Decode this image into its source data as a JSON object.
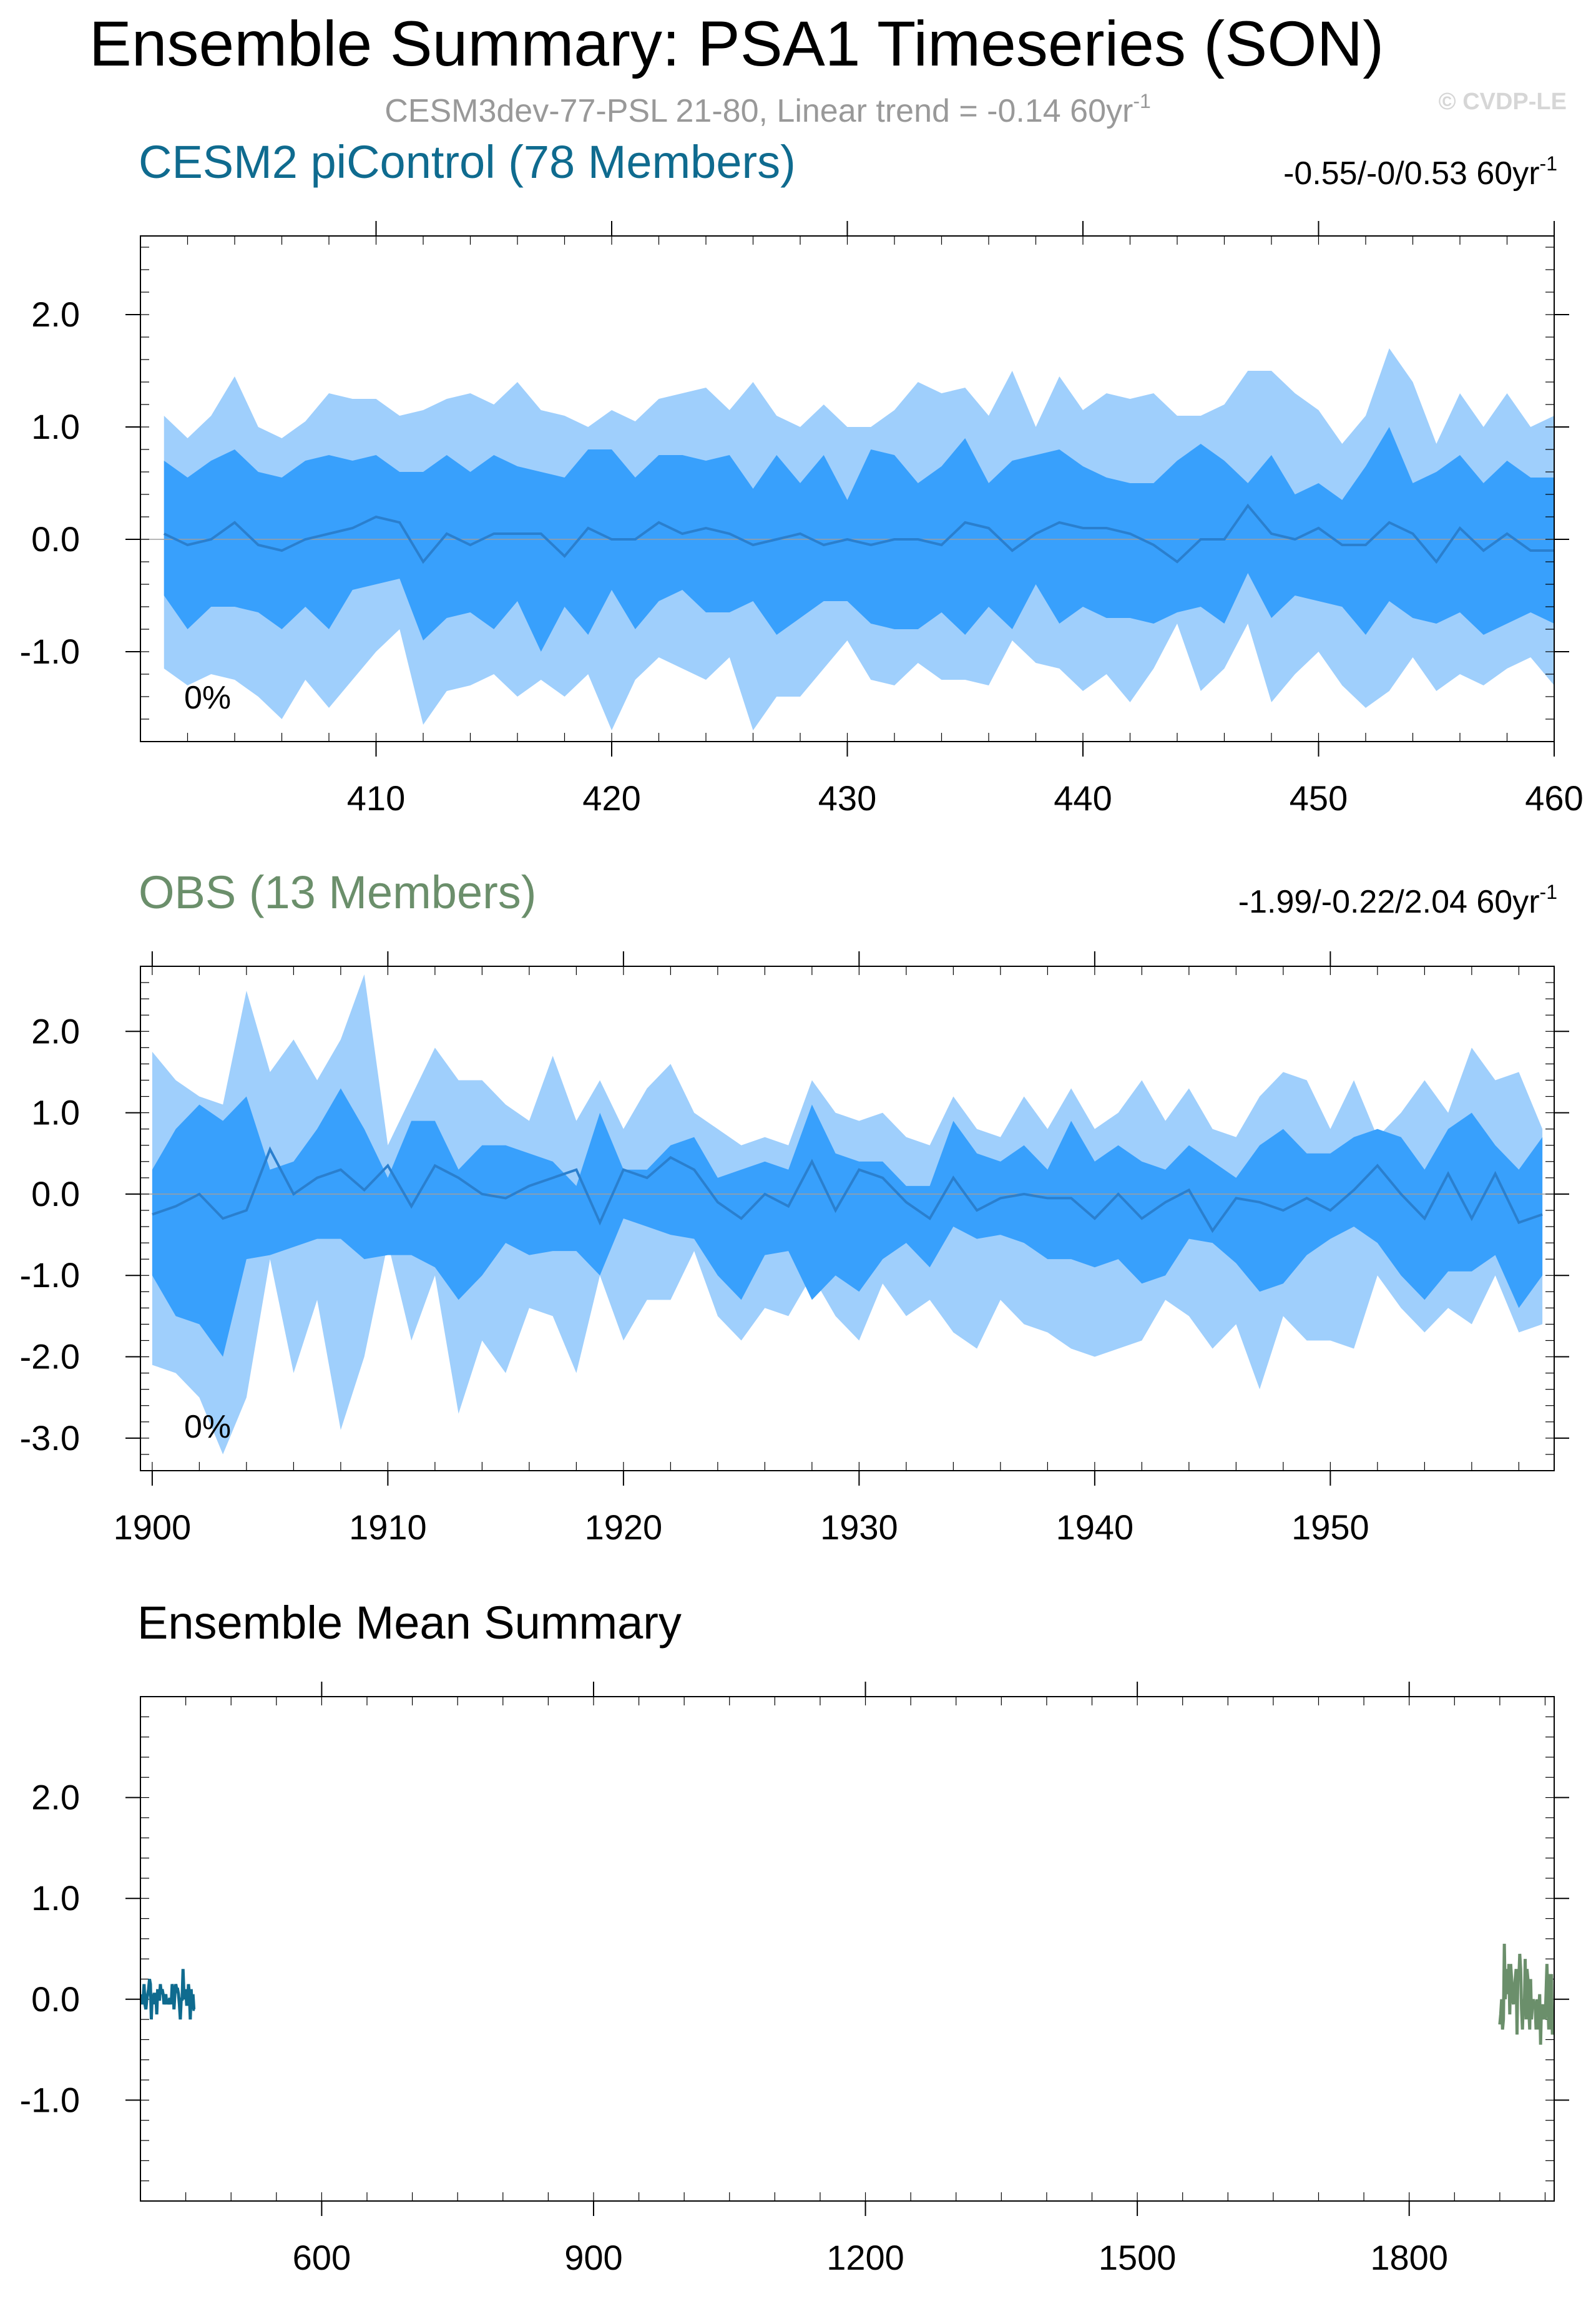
{
  "header": {
    "title": "Ensemble Summary: PSA1 Timeseries (SON)",
    "subtitle_main": "CESM3dev-77-PSL 21-80, Linear trend = -0.14 60yr",
    "subtitle_sup": "-1",
    "watermark": "© CVDP-LE"
  },
  "colors": {
    "outer_band": "#9fcffc",
    "inner_band": "#38a0fc",
    "mean_line": "#2a7fce",
    "cesm_title": "#0f6b8f",
    "obs_title": "#6b8f6b",
    "frame": "#000000"
  },
  "chart_data": [
    {
      "id": "cesm",
      "type": "area",
      "title": "CESM2 piControl (78 Members)",
      "trend_label": "-0.55/-0/0.53 60yr",
      "trend_sup": "-1",
      "percent_label": "0%",
      "xlim": [
        400,
        460
      ],
      "ylim": [
        -1.8,
        2.7
      ],
      "x_ticks": [
        410,
        420,
        430,
        440,
        450,
        460
      ],
      "y_ticks": [
        2,
        1,
        0,
        -1
      ],
      "y_tick_labels": [
        "2.0",
        "1.0",
        "0.0",
        "-1.0"
      ],
      "x_start": 401,
      "outer_upper": [
        1.1,
        0.9,
        1.1,
        1.45,
        1.0,
        0.9,
        1.05,
        1.3,
        1.25,
        1.25,
        1.1,
        1.15,
        1.25,
        1.3,
        1.2,
        1.4,
        1.15,
        1.1,
        1.0,
        1.15,
        1.05,
        1.25,
        1.3,
        1.35,
        1.15,
        1.4,
        1.1,
        1.0,
        1.2,
        1.0,
        1.0,
        1.15,
        1.4,
        1.3,
        1.35,
        1.1,
        1.5,
        1.0,
        1.45,
        1.15,
        1.3,
        1.25,
        1.3,
        1.1,
        1.1,
        1.2,
        1.5,
        1.5,
        1.3,
        1.15,
        0.85,
        1.1,
        1.7,
        1.4,
        0.85,
        1.3,
        1.0,
        1.3,
        1.0,
        1.1
      ],
      "inner_upper": [
        0.7,
        0.55,
        0.7,
        0.8,
        0.6,
        0.55,
        0.7,
        0.75,
        0.7,
        0.75,
        0.6,
        0.6,
        0.75,
        0.6,
        0.75,
        0.65,
        0.6,
        0.55,
        0.8,
        0.8,
        0.55,
        0.75,
        0.75,
        0.7,
        0.75,
        0.45,
        0.75,
        0.5,
        0.75,
        0.35,
        0.8,
        0.75,
        0.5,
        0.65,
        0.9,
        0.5,
        0.7,
        0.75,
        0.8,
        0.65,
        0.55,
        0.5,
        0.5,
        0.7,
        0.85,
        0.7,
        0.5,
        0.75,
        0.4,
        0.5,
        0.35,
        0.65,
        1.0,
        0.5,
        0.6,
        0.75,
        0.5,
        0.7,
        0.55,
        0.55
      ],
      "mean": [
        0.05,
        -0.05,
        0.0,
        0.15,
        -0.05,
        -0.1,
        0.0,
        0.05,
        0.1,
        0.2,
        0.15,
        -0.2,
        0.05,
        -0.05,
        0.05,
        0.05,
        0.05,
        -0.15,
        0.1,
        0.0,
        0.0,
        0.15,
        0.05,
        0.1,
        0.05,
        -0.05,
        0.0,
        0.05,
        -0.05,
        0.0,
        -0.05,
        0.0,
        0.0,
        -0.05,
        0.15,
        0.1,
        -0.1,
        0.05,
        0.15,
        0.1,
        0.1,
        0.05,
        -0.05,
        -0.2,
        0.0,
        0.0,
        0.3,
        0.05,
        0.0,
        0.1,
        -0.05,
        -0.05,
        0.15,
        0.05,
        -0.2,
        0.1,
        -0.1,
        0.05,
        -0.1,
        -0.1
      ],
      "inner_lower": [
        -0.5,
        -0.8,
        -0.6,
        -0.6,
        -0.65,
        -0.8,
        -0.6,
        -0.8,
        -0.45,
        -0.4,
        -0.35,
        -0.9,
        -0.7,
        -0.65,
        -0.8,
        -0.55,
        -1.0,
        -0.6,
        -0.85,
        -0.45,
        -0.8,
        -0.55,
        -0.45,
        -0.65,
        -0.65,
        -0.55,
        -0.85,
        -0.7,
        -0.55,
        -0.55,
        -0.75,
        -0.8,
        -0.8,
        -0.65,
        -0.85,
        -0.6,
        -0.8,
        -0.4,
        -0.75,
        -0.6,
        -0.7,
        -0.7,
        -0.75,
        -0.65,
        -0.6,
        -0.75,
        -0.3,
        -0.7,
        -0.5,
        -0.55,
        -0.6,
        -0.85,
        -0.55,
        -0.7,
        -0.75,
        -0.65,
        -0.85,
        -0.75,
        -0.65,
        -0.75
      ],
      "outer_lower": [
        -1.15,
        -1.3,
        -1.2,
        -1.25,
        -1.4,
        -1.6,
        -1.25,
        -1.5,
        -1.25,
        -1.0,
        -0.8,
        -1.65,
        -1.35,
        -1.3,
        -1.2,
        -1.4,
        -1.25,
        -1.4,
        -1.2,
        -1.7,
        -1.25,
        -1.05,
        -1.15,
        -1.25,
        -1.05,
        -1.7,
        -1.4,
        -1.4,
        -1.15,
        -0.9,
        -1.25,
        -1.3,
        -1.1,
        -1.25,
        -1.25,
        -1.3,
        -0.9,
        -1.1,
        -1.15,
        -1.35,
        -1.2,
        -1.45,
        -1.15,
        -0.75,
        -1.35,
        -1.15,
        -0.75,
        -1.45,
        -1.2,
        -1.0,
        -1.3,
        -1.5,
        -1.35,
        -1.05,
        -1.35,
        -1.2,
        -1.3,
        -1.15,
        -1.05,
        -1.3
      ]
    },
    {
      "id": "obs",
      "type": "area",
      "title": "OBS (13 Members)",
      "trend_label": "-1.99/-0.22/2.04 60yr",
      "trend_sup": "-1",
      "percent_label": "0%",
      "xlim": [
        1899.5,
        1959.5
      ],
      "ylim": [
        -3.4,
        2.8
      ],
      "x_ticks": [
        1900,
        1910,
        1920,
        1930,
        1940,
        1950
      ],
      "y_ticks": [
        2,
        1,
        0,
        -1,
        -2,
        -3
      ],
      "y_tick_labels": [
        "2.0",
        "1.0",
        "0.0",
        "-1.0",
        "-2.0",
        "-3.0"
      ],
      "x_start": 1900,
      "outer_upper": [
        1.75,
        1.4,
        1.2,
        1.1,
        2.5,
        1.5,
        1.9,
        1.4,
        1.9,
        2.7,
        0.6,
        1.2,
        1.8,
        1.4,
        1.4,
        1.1,
        0.9,
        1.7,
        0.9,
        1.4,
        0.8,
        1.3,
        1.6,
        1.0,
        0.8,
        0.6,
        0.7,
        0.6,
        1.4,
        1.0,
        0.9,
        1.0,
        0.7,
        0.6,
        1.2,
        0.8,
        0.7,
        1.2,
        0.8,
        1.3,
        0.8,
        1.0,
        1.4,
        0.9,
        1.3,
        0.8,
        0.7,
        1.2,
        1.5,
        1.4,
        0.8,
        1.4,
        0.7,
        1.0,
        1.4,
        1.0,
        1.8,
        1.4,
        1.5,
        0.8
      ],
      "inner_upper": [
        0.3,
        0.8,
        1.1,
        0.9,
        1.2,
        0.3,
        0.4,
        0.8,
        1.3,
        0.8,
        0.2,
        0.9,
        0.9,
        0.3,
        0.6,
        0.6,
        0.5,
        0.4,
        0.1,
        1.0,
        0.3,
        0.3,
        0.6,
        0.7,
        0.2,
        0.3,
        0.4,
        0.3,
        1.1,
        0.5,
        0.4,
        0.4,
        0.1,
        0.1,
        0.9,
        0.5,
        0.4,
        0.6,
        0.3,
        0.9,
        0.4,
        0.6,
        0.4,
        0.3,
        0.6,
        0.4,
        0.2,
        0.6,
        0.8,
        0.5,
        0.5,
        0.7,
        0.8,
        0.7,
        0.3,
        0.8,
        1.0,
        0.6,
        0.3,
        0.7
      ],
      "mean": [
        -0.25,
        -0.15,
        0.0,
        -0.3,
        -0.2,
        0.55,
        0.0,
        0.2,
        0.3,
        0.05,
        0.35,
        -0.15,
        0.35,
        0.2,
        0.0,
        -0.05,
        0.1,
        0.2,
        0.3,
        -0.35,
        0.3,
        0.2,
        0.45,
        0.3,
        -0.1,
        -0.3,
        0.0,
        -0.15,
        0.4,
        -0.2,
        0.3,
        0.2,
        -0.1,
        -0.3,
        0.2,
        -0.2,
        -0.05,
        0.0,
        -0.05,
        -0.05,
        -0.3,
        0.0,
        -0.3,
        -0.1,
        0.05,
        -0.45,
        -0.05,
        -0.1,
        -0.2,
        -0.05,
        -0.2,
        0.05,
        0.35,
        0.0,
        -0.3,
        0.25,
        -0.3,
        0.25,
        -0.35,
        -0.25
      ],
      "inner_lower": [
        -1.0,
        -1.5,
        -1.6,
        -2.0,
        -0.8,
        -0.75,
        -0.65,
        -0.55,
        -0.55,
        -0.8,
        -0.75,
        -0.75,
        -0.9,
        -1.3,
        -1.0,
        -0.6,
        -0.75,
        -0.7,
        -0.7,
        -1.0,
        -0.3,
        -0.4,
        -0.5,
        -0.55,
        -1.0,
        -1.3,
        -0.75,
        -0.7,
        -1.3,
        -1.0,
        -1.2,
        -0.8,
        -0.6,
        -0.9,
        -0.4,
        -0.55,
        -0.5,
        -0.6,
        -0.8,
        -0.8,
        -0.9,
        -0.8,
        -1.1,
        -1.0,
        -0.55,
        -0.6,
        -0.85,
        -1.2,
        -1.1,
        -0.75,
        -0.55,
        -0.4,
        -0.6,
        -1.0,
        -1.3,
        -0.95,
        -0.95,
        -0.75,
        -1.4,
        -1.0
      ],
      "outer_lower": [
        -2.1,
        -2.2,
        -2.5,
        -3.2,
        -2.5,
        -0.8,
        -2.2,
        -1.3,
        -2.9,
        -2.0,
        -0.6,
        -1.8,
        -1.0,
        -2.7,
        -1.8,
        -2.2,
        -1.4,
        -1.5,
        -2.2,
        -1.0,
        -1.8,
        -1.3,
        -1.3,
        -0.7,
        -1.5,
        -1.8,
        -1.4,
        -1.5,
        -1.0,
        -1.5,
        -1.8,
        -1.1,
        -1.5,
        -1.3,
        -1.7,
        -1.9,
        -1.3,
        -1.6,
        -1.7,
        -1.9,
        -2.0,
        -1.9,
        -1.8,
        -1.3,
        -1.5,
        -1.9,
        -1.6,
        -2.4,
        -1.5,
        -1.8,
        -1.8,
        -1.9,
        -1.0,
        -1.4,
        -1.7,
        -1.4,
        -1.6,
        -1.0,
        -1.7,
        -1.6
      ]
    },
    {
      "id": "mean",
      "type": "line",
      "title": "Ensemble Mean Summary",
      "xlim": [
        400,
        1960
      ],
      "ylim": [
        -2.0,
        3.0
      ],
      "x_ticks": [
        600,
        900,
        1200,
        1500,
        1800
      ],
      "x_tick_labels": [
        "600",
        "900",
        "1200",
        "1500",
        "1800"
      ],
      "y_ticks": [
        2,
        1,
        0,
        -1
      ],
      "y_tick_labels": [
        "2.0",
        "1.0",
        "0.0",
        "-1.0"
      ],
      "series": [
        {
          "name": "CESM2 piControl",
          "color": "#0f6b8f",
          "x_start": 401,
          "values": [
            0.05,
            -0.05,
            0.0,
            0.15,
            -0.05,
            -0.1,
            0.0,
            0.05,
            0.1,
            0.2,
            0.15,
            -0.2,
            0.05,
            -0.05,
            0.05,
            0.05,
            0.05,
            -0.15,
            0.1,
            0.0,
            0.0,
            0.15,
            0.05,
            0.1,
            0.05,
            -0.05,
            0.0,
            0.05,
            -0.05,
            0.0,
            -0.05,
            0.0,
            0.0,
            -0.05,
            0.15,
            0.1,
            -0.1,
            0.05,
            0.15,
            0.1,
            0.1,
            0.05,
            -0.05,
            -0.2,
            0.0,
            0.0,
            0.3,
            0.05,
            0.0,
            0.1,
            -0.05,
            -0.05,
            0.15,
            0.05,
            -0.2,
            0.1,
            -0.1,
            0.05,
            -0.1,
            -0.1
          ]
        },
        {
          "name": "OBS",
          "color": "#6b8f6b",
          "x_start": 1900,
          "values": [
            -0.25,
            -0.15,
            0.0,
            -0.3,
            -0.2,
            0.55,
            0.0,
            0.2,
            0.3,
            0.05,
            0.35,
            -0.15,
            0.35,
            0.2,
            0.0,
            -0.05,
            0.1,
            0.2,
            0.3,
            -0.35,
            0.3,
            0.2,
            0.45,
            0.3,
            -0.1,
            -0.3,
            0.0,
            -0.15,
            0.4,
            -0.2,
            0.3,
            0.2,
            -0.1,
            -0.3,
            0.2,
            -0.2,
            -0.05,
            0.0,
            -0.05,
            -0.05,
            -0.3,
            0.0,
            -0.3,
            -0.1,
            0.05,
            -0.45,
            -0.05,
            -0.1,
            -0.2,
            -0.05,
            -0.2,
            0.05,
            0.35,
            0.0,
            -0.3,
            0.25,
            -0.3,
            0.25,
            -0.35,
            -0.25
          ]
        }
      ]
    }
  ]
}
